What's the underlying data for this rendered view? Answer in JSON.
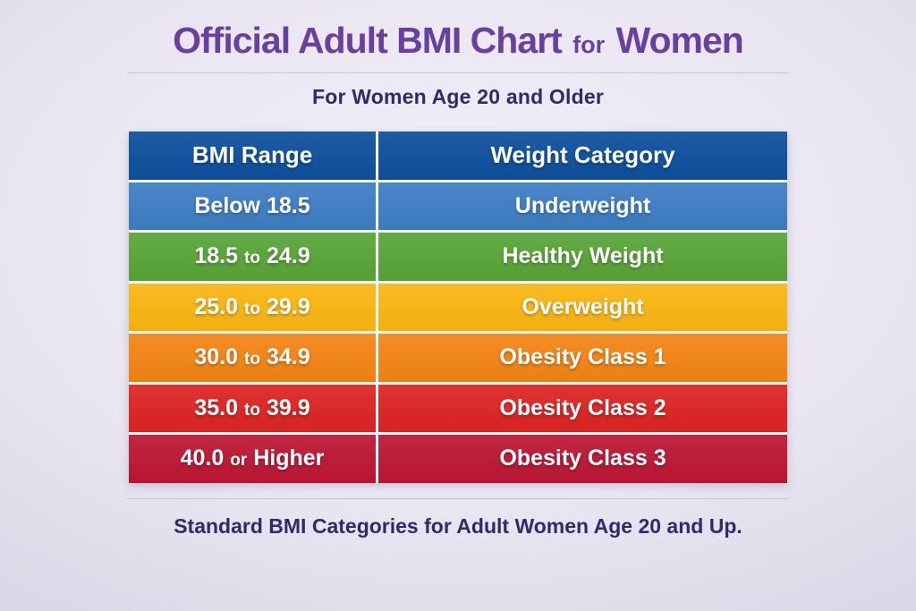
{
  "page": {
    "title_main": "Official Adult BMI Chart",
    "title_connector": "for",
    "title_end": "Women",
    "subtitle": "For Women Age 20 and Older",
    "footer_note": "Standard BMI Categories for Adult Women Age 20 and Up."
  },
  "colors": {
    "title": "#6b3fa0",
    "subtitle_text": "#2f2a68",
    "header_row": "#0e4f9e",
    "background": "#e9e6f2",
    "divider": "#c6c2d5",
    "row_text": "#ffffff"
  },
  "table": {
    "headers": [
      "BMI Range",
      "Weight Category"
    ],
    "header_color": "#0e4f9e",
    "rows": [
      {
        "range_main": "Below 18.5",
        "range_connector": "",
        "range_end": "",
        "category": "Underweight",
        "color": "#3d7dc4"
      },
      {
        "range_main": "18.5",
        "range_connector": "to",
        "range_end": "24.9",
        "category": "Healthy Weight",
        "color": "#58a437"
      },
      {
        "range_main": "25.0",
        "range_connector": "to",
        "range_end": "29.9",
        "category": "Overweight",
        "color": "#fab511"
      },
      {
        "range_main": "30.0",
        "range_connector": "to",
        "range_end": "34.9",
        "category": "Obesity Class 1",
        "color": "#f38414"
      },
      {
        "range_main": "35.0",
        "range_connector": "to",
        "range_end": "39.9",
        "category": "Obesity Class 2",
        "color": "#dd2323"
      },
      {
        "range_main": "40.0",
        "range_connector": "or",
        "range_end": "Higher",
        "category": "Obesity Class 3",
        "color": "#bc1632"
      }
    ]
  },
  "chart_data": {
    "type": "table",
    "title": "Official Adult BMI Chart for Women",
    "subtitle": "For Women Age 20 and Older",
    "columns": [
      "BMI Range",
      "Weight Category"
    ],
    "rows": [
      [
        "Below 18.5",
        "Underweight"
      ],
      [
        "18.5 to 24.9",
        "Healthy Weight"
      ],
      [
        "25.0 to 29.9",
        "Overweight"
      ],
      [
        "30.0 to 34.9",
        "Obesity Class 1"
      ],
      [
        "35.0 to 39.9",
        "Obesity Class 2"
      ],
      [
        "40.0 or Higher",
        "Obesity Class 3"
      ]
    ],
    "row_colors": [
      "#3d7dc4",
      "#58a437",
      "#fab511",
      "#f38414",
      "#dd2323",
      "#bc1632"
    ],
    "header_color": "#0e4f9e",
    "caption": "Standard BMI Categories for Adult Women Age 20 and Up."
  }
}
